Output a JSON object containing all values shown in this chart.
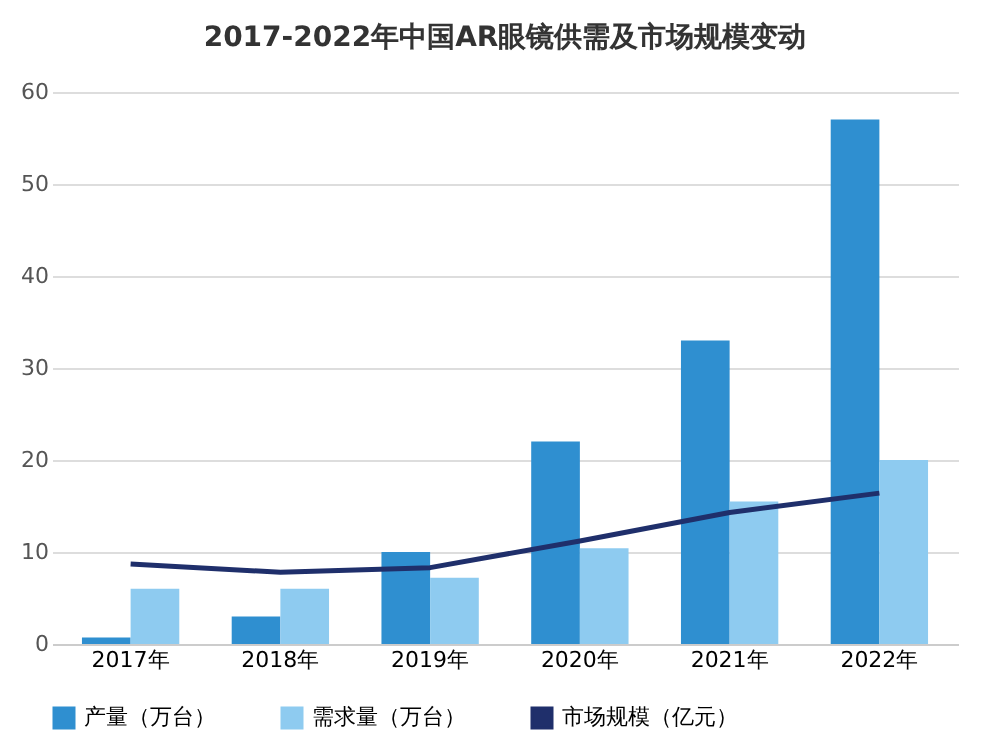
{
  "chart_data": {
    "type": "bar",
    "title": "2017-2022年中国AR眼镜供需及市场规模变动",
    "categories": [
      "2017年",
      "2018年",
      "2019年",
      "2020年",
      "2021年",
      "2022年"
    ],
    "series": [
      {
        "name": "产量（万台）",
        "color": "#2f8fd0",
        "values": [
          0.7,
          3,
          10,
          22,
          33,
          57
        ]
      },
      {
        "name": "需求量（万台）",
        "color": "#8ecbf0",
        "values": [
          6,
          6,
          7.2,
          10.4,
          15.5,
          20
        ]
      },
      {
        "name": "市场规模（亿元）",
        "type": "line",
        "color": "#1f2f6b",
        "values": [
          8.7,
          7.8,
          8.3,
          11.2,
          14.3,
          16.4
        ]
      }
    ],
    "ylim": [
      0,
      60
    ],
    "yticks": [
      0,
      10,
      20,
      30,
      40,
      50,
      60
    ],
    "grid": "y",
    "legend": "bottom"
  }
}
